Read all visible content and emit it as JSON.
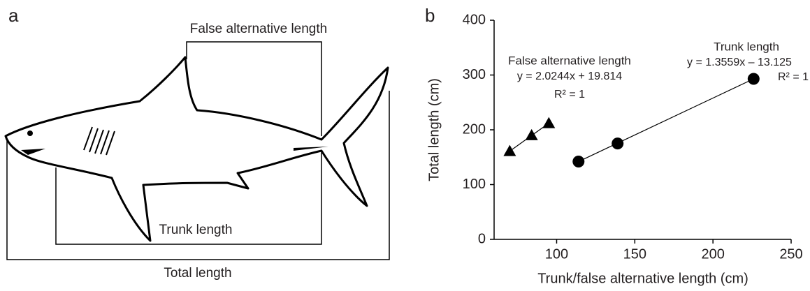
{
  "panel_a": {
    "label": "a",
    "false_alt_label": "False alternative length",
    "trunk_label": "Trunk length",
    "total_label": "Total length"
  },
  "chart_data": {
    "type": "scatter",
    "panel_label": "b",
    "x_label": "Trunk/false alternative length (cm)",
    "y_label": "Total length (cm)",
    "xlim": [
      60,
      250
    ],
    "xticks": [
      100,
      150,
      200,
      250
    ],
    "ylim": [
      0,
      400
    ],
    "yticks": [
      0,
      100,
      200,
      300,
      400
    ],
    "series": [
      {
        "name": "False alternative length",
        "marker": "triangle",
        "color": "#000000",
        "x": [
          70,
          84,
          95
        ],
        "values": [
          161,
          190,
          212
        ],
        "equation": "y = 2.0244x + 19.814",
        "r2": "R² = 1"
      },
      {
        "name": "Trunk length",
        "marker": "circle",
        "color": "#000000",
        "x": [
          114,
          139,
          226
        ],
        "values": [
          142,
          175,
          293
        ],
        "equation": "y = 1.3559x – 13.125",
        "r2": "R² = 1"
      }
    ]
  }
}
